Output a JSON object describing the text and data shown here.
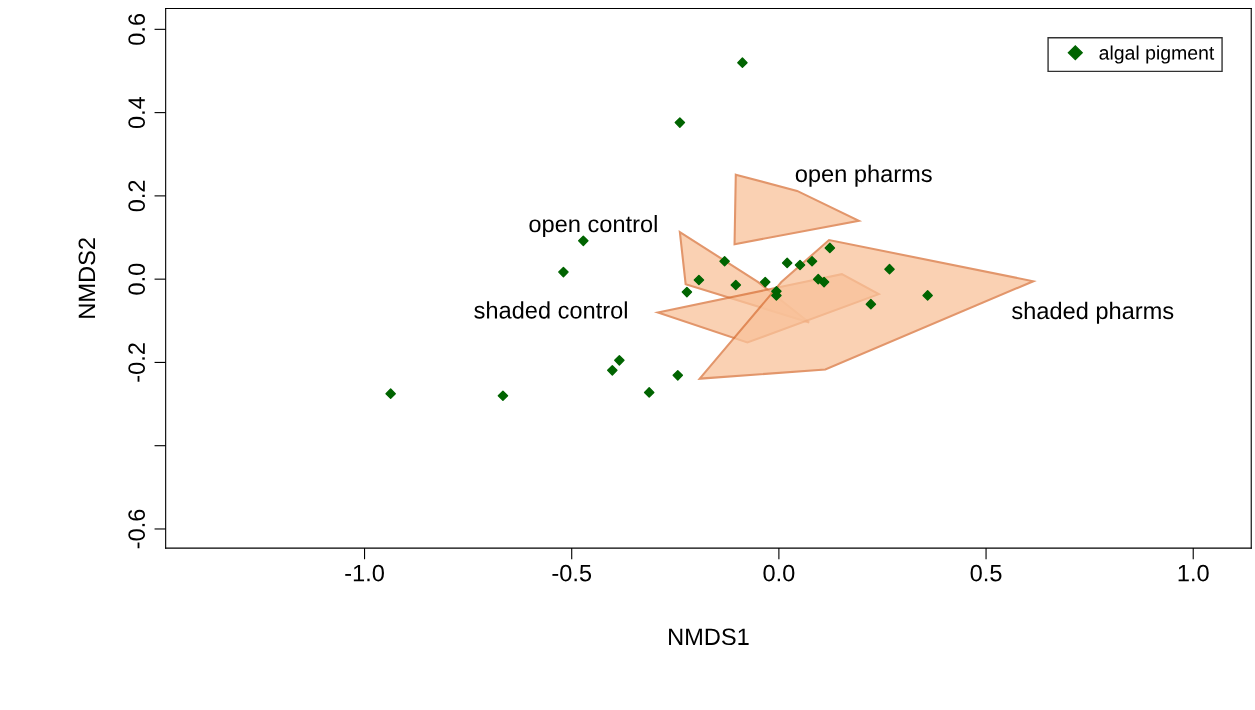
{
  "chart_data": {
    "type": "scatter",
    "xlabel": "NMDS1",
    "ylabel": "NMDS2",
    "xlim": [
      -1.48,
      1.14
    ],
    "ylim": [
      -0.646,
      0.65
    ],
    "xticks": [
      {
        "value": -1.0,
        "label": "-1.0"
      },
      {
        "value": -0.5,
        "label": "-0.5"
      },
      {
        "value": 0.0,
        "label": "0.0"
      },
      {
        "value": 0.5,
        "label": "0.5"
      },
      {
        "value": 1.0,
        "label": "1.0"
      }
    ],
    "yticks": [
      {
        "value": -0.6,
        "label": "-0.6"
      },
      {
        "value": -0.4,
        "label": null
      },
      {
        "value": -0.2,
        "label": "-0.2"
      },
      {
        "value": 0.0,
        "label": "0.0"
      },
      {
        "value": 0.2,
        "label": "0.2"
      },
      {
        "value": 0.4,
        "label": "0.4"
      },
      {
        "value": 0.6,
        "label": "0.6"
      }
    ],
    "grid": false,
    "legend": "top right",
    "series": [
      {
        "type": "area",
        "color": "#f9c29a",
        "x": [
          -0.104,
          0.044,
          0.193,
          -0.107
        ],
        "values": [
          0.251,
          0.212,
          0.14,
          0.084
        ]
      },
      {
        "type": "area",
        "color": "#f9c29a",
        "x": [
          -0.239,
          -0.05,
          0.073,
          -0.225
        ],
        "values": [
          0.113,
          -0.007,
          -0.104,
          -0.012
        ]
      },
      {
        "type": "area",
        "color": "#f9c29a",
        "x": [
          -0.292,
          0.152,
          0.241,
          -0.076
        ],
        "values": [
          -0.08,
          0.012,
          -0.036,
          -0.152
        ]
      },
      {
        "type": "area",
        "color": "#f9c29a",
        "x": [
          -0.191,
          0.006,
          0.121,
          0.614,
          0.112
        ],
        "values": [
          -0.239,
          -0.007,
          0.094,
          -0.005,
          -0.217
        ]
      },
      {
        "name": "algal pigment",
        "color": "#006400",
        "marker": "diamond",
        "x": [
          -0.088,
          -0.239,
          -0.472,
          -0.52,
          -0.131,
          -0.193,
          -0.222,
          -0.104,
          -0.033,
          -0.006,
          -0.006,
          0.02,
          0.051,
          0.08,
          0.095,
          0.109,
          0.123,
          0.267,
          0.222,
          0.359,
          -0.385,
          -0.402,
          -0.313,
          -0.244,
          -0.937,
          -0.666
        ],
        "values": [
          0.52,
          0.376,
          0.092,
          0.017,
          0.043,
          -0.002,
          -0.031,
          -0.014,
          -0.007,
          -0.029,
          -0.039,
          0.039,
          0.034,
          0.043,
          0.0,
          -0.007,
          0.075,
          0.024,
          -0.06,
          -0.039,
          -0.195,
          -0.219,
          -0.272,
          -0.231,
          -0.275,
          -0.28
        ]
      }
    ],
    "annotations": [
      "open pharms",
      "open control",
      "shaded control",
      "shaded pharms"
    ]
  }
}
